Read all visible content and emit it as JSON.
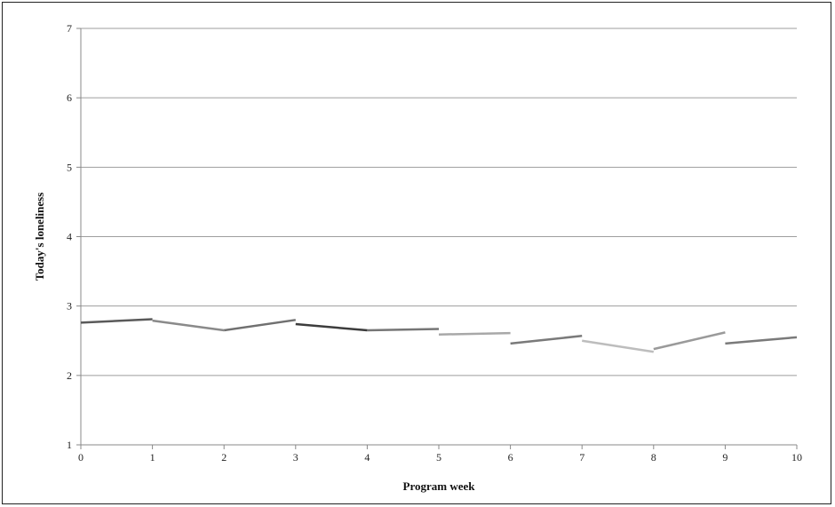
{
  "chart_data": {
    "type": "line",
    "title": "",
    "xlabel": "Program week",
    "ylabel": "Today's loneliness",
    "xlim": [
      0,
      10
    ],
    "ylim": [
      1,
      7
    ],
    "x_ticks": [
      "0",
      "1",
      "2",
      "3",
      "4",
      "5",
      "6",
      "7",
      "8",
      "9",
      "10"
    ],
    "y_ticks": [
      "1",
      "2",
      "3",
      "4",
      "5",
      "6",
      "7"
    ],
    "grid": true,
    "legend": "none",
    "segments": [
      {
        "x": [
          0,
          1
        ],
        "y": [
          2.76,
          2.81
        ],
        "color": "#5a5a5a"
      },
      {
        "x": [
          1,
          2
        ],
        "y": [
          2.79,
          2.65
        ],
        "color": "#8a8a8a"
      },
      {
        "x": [
          2,
          3
        ],
        "y": [
          2.65,
          2.8
        ],
        "color": "#707070"
      },
      {
        "x": [
          3,
          4
        ],
        "y": [
          2.74,
          2.65
        ],
        "color": "#3c3c3c"
      },
      {
        "x": [
          4,
          5
        ],
        "y": [
          2.65,
          2.67
        ],
        "color": "#767676"
      },
      {
        "x": [
          5,
          6
        ],
        "y": [
          2.59,
          2.61
        ],
        "color": "#a8a8a8"
      },
      {
        "x": [
          6,
          7
        ],
        "y": [
          2.46,
          2.57
        ],
        "color": "#7a7a7a"
      },
      {
        "x": [
          7,
          8
        ],
        "y": [
          2.5,
          2.34
        ],
        "color": "#bdbdbd"
      },
      {
        "x": [
          8,
          9
        ],
        "y": [
          2.38,
          2.62
        ],
        "color": "#9a9a9a"
      },
      {
        "x": [
          9,
          10
        ],
        "y": [
          2.46,
          2.55
        ],
        "color": "#7a7a7a"
      }
    ]
  }
}
